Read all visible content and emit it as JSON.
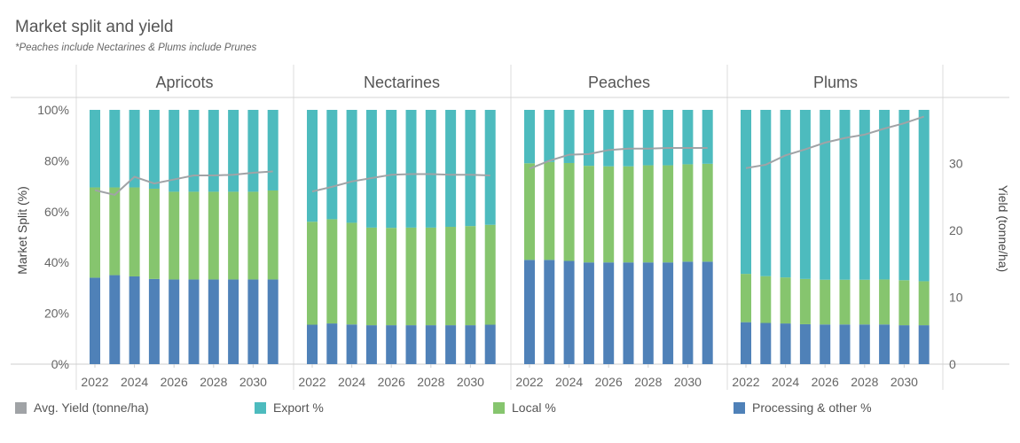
{
  "title": "Market split and yield",
  "subtitle": "*Peaches include Nectarines & Plums include Prunes",
  "colors": {
    "export": "#4dbbbe",
    "local": "#86c56e",
    "processing": "#4f81b8",
    "yield": "#a0a3a6"
  },
  "legend": [
    {
      "label": "Avg. Yield (tonne/ha)",
      "color": "#a0a3a6"
    },
    {
      "label": "Export %",
      "color": "#4dbbbe"
    },
    {
      "label": "Local %",
      "color": "#86c56e"
    },
    {
      "label": "Processing & other %",
      "color": "#4f81b8"
    }
  ],
  "chart_data": {
    "type": "bar",
    "stacked": true,
    "ylabel": "Market Split (%)",
    "y2label": "Yield (tonne/ha)",
    "ylim": [
      0,
      100
    ],
    "y2lim": [
      0,
      38
    ],
    "yticks": [
      "0%",
      "20%",
      "40%",
      "60%",
      "80%",
      "100%"
    ],
    "y2ticks": [
      0,
      10,
      20,
      30
    ],
    "x": [
      2022,
      2023,
      2024,
      2025,
      2026,
      2027,
      2028,
      2029,
      2030,
      2031
    ],
    "xticks": [
      "2022",
      "2024",
      "2026",
      "2028",
      "2030"
    ],
    "panels": [
      {
        "name": "Apricots",
        "processing": [
          34,
          35,
          34.5,
          33.5,
          33.3,
          33.3,
          33.3,
          33.3,
          33.3,
          33.3
        ],
        "local": [
          35.5,
          34.5,
          35,
          35.5,
          34.5,
          34.5,
          34.5,
          34.5,
          34.5,
          35
        ],
        "export": [
          30.5,
          30.5,
          30.5,
          31,
          32.2,
          32.2,
          32.2,
          32.2,
          32.2,
          31.7
        ],
        "yield": [
          26,
          25.3,
          28,
          27,
          27.6,
          28.2,
          28.2,
          28.3,
          28.6,
          28.8
        ]
      },
      {
        "name": "Nectarines",
        "processing": [
          15.5,
          16,
          15.6,
          15.3,
          15.3,
          15.3,
          15.3,
          15.3,
          15.3,
          15.5
        ],
        "local": [
          40.5,
          41,
          40,
          38.4,
          38.3,
          38.4,
          38.4,
          38.7,
          39,
          39.3
        ],
        "export": [
          44,
          43,
          44.4,
          46.3,
          46.4,
          46.3,
          46.3,
          46,
          45.7,
          45.2
        ],
        "yield": [
          25.8,
          26.5,
          27.3,
          27.8,
          28.3,
          28.4,
          28.4,
          28.3,
          28.3,
          28.2
        ]
      },
      {
        "name": "Peaches",
        "processing": [
          41,
          41,
          40.6,
          40,
          40,
          40,
          40,
          40,
          40.3,
          40.3
        ],
        "local": [
          38,
          38.5,
          38.5,
          38,
          37.8,
          37.8,
          38.2,
          38.2,
          38.3,
          38.5
        ],
        "export": [
          21,
          20.5,
          20.9,
          22,
          22.2,
          22.2,
          21.8,
          21.8,
          21.4,
          21.2
        ],
        "yield": [
          29.2,
          30.4,
          31.3,
          31.4,
          32,
          32.2,
          32.2,
          32.3,
          32.3,
          32.3
        ]
      },
      {
        "name": "Plums",
        "processing": [
          16.5,
          16.2,
          16,
          15.7,
          15.6,
          15.6,
          15.6,
          15.6,
          15.3,
          15.3
        ],
        "local": [
          19,
          18.4,
          18.1,
          17.8,
          17.6,
          17.6,
          17.6,
          17.7,
          17.7,
          17.3
        ],
        "export": [
          64.5,
          65.4,
          65.9,
          66.5,
          66.8,
          66.8,
          66.8,
          66.7,
          67,
          67.4
        ],
        "yield": [
          29.3,
          29.8,
          31.2,
          32.1,
          33.1,
          33.8,
          34.3,
          35.2,
          36,
          37
        ]
      }
    ]
  }
}
